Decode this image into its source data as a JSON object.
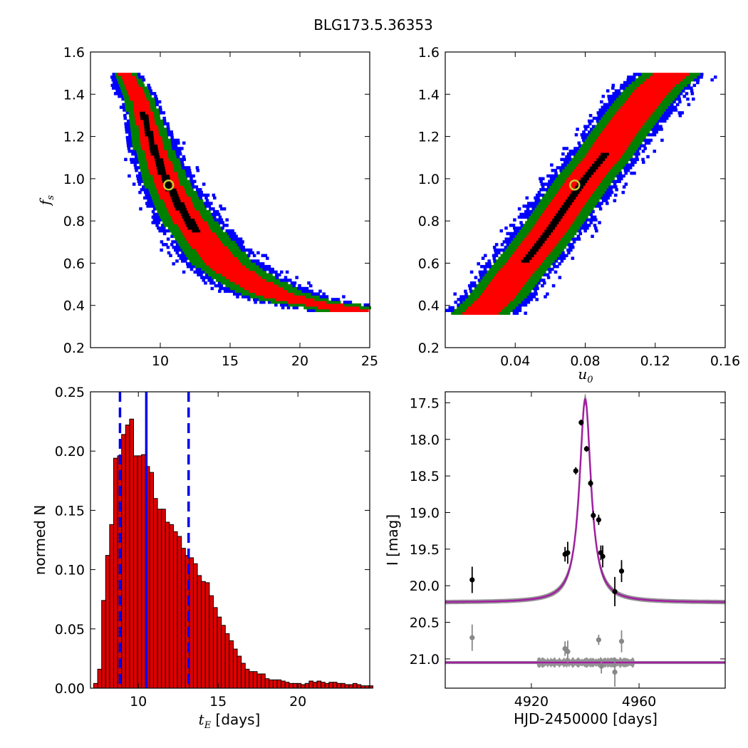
{
  "figure": {
    "title": "BLG173.5.36353"
  },
  "chart_data": [
    {
      "type": "heatmap",
      "panel": "fs-vs-tE",
      "xlim": [
        5,
        25
      ],
      "ylim": [
        0.2,
        1.6
      ],
      "xticks": [
        "10",
        "15",
        "20",
        "25"
      ],
      "yticks": [
        "0.2",
        "0.4",
        "0.6",
        "0.8",
        "1.0",
        "1.2",
        "1.4",
        "1.6"
      ],
      "ylabel": "f_s",
      "ylabel_main": "f",
      "ylabel_sub": "s",
      "best_fit": {
        "x": 10.6,
        "y": 0.97
      },
      "contour_levels": [
        "black",
        "red",
        "green",
        "blue"
      ],
      "colors": {
        "c1": "#000000",
        "c2": "#ff0000",
        "c3": "#008000",
        "c4": "#0000ff",
        "marker": "#c8c832"
      },
      "ridge": [
        [
          7.5,
          1.5
        ],
        [
          8.5,
          1.38
        ],
        [
          9.5,
          1.15
        ],
        [
          10.5,
          0.98
        ],
        [
          11.5,
          0.86
        ],
        [
          12.5,
          0.76
        ],
        [
          13.5,
          0.68
        ],
        [
          14.5,
          0.6
        ],
        [
          16,
          0.53
        ],
        [
          18,
          0.46
        ],
        [
          20,
          0.42
        ],
        [
          22,
          0.4
        ],
        [
          24,
          0.37
        ]
      ]
    },
    {
      "type": "heatmap",
      "panel": "fs-vs-u0",
      "xlim": [
        0.0,
        0.16
      ],
      "ylim": [
        0.2,
        1.6
      ],
      "xticks": [
        "0.04",
        "0.08",
        "0.12",
        "0.16"
      ],
      "yticks": [
        "0.2",
        "0.4",
        "0.6",
        "0.8",
        "1.0",
        "1.2",
        "1.4",
        "1.6"
      ],
      "xlabel": "u_0",
      "xlabel_main": "u",
      "xlabel_sub": "0",
      "best_fit": {
        "x": 0.074,
        "y": 0.97
      },
      "contour_levels": [
        "black",
        "red",
        "green",
        "blue"
      ],
      "colors": {
        "c1": "#000000",
        "c2": "#ff0000",
        "c3": "#008000",
        "c4": "#0000ff",
        "marker": "#c8c832"
      },
      "ridge": [
        [
          0.02,
          0.36
        ],
        [
          0.03,
          0.44
        ],
        [
          0.04,
          0.55
        ],
        [
          0.05,
          0.65
        ],
        [
          0.06,
          0.76
        ],
        [
          0.07,
          0.88
        ],
        [
          0.08,
          1.0
        ],
        [
          0.09,
          1.1
        ],
        [
          0.1,
          1.22
        ],
        [
          0.11,
          1.33
        ],
        [
          0.12,
          1.43
        ],
        [
          0.13,
          1.5
        ]
      ]
    },
    {
      "type": "bar",
      "panel": "tE-histogram",
      "xlabel_main": "t",
      "xlabel_sub": "E",
      "xlabel_unit": " [days]",
      "ylabel": "normed N",
      "xlim": [
        7.0,
        24.5
      ],
      "ylim": [
        0.0,
        0.25
      ],
      "xticks": [
        "10",
        "15",
        "20"
      ],
      "yticks": [
        "0.00",
        "0.05",
        "0.10",
        "0.15",
        "0.20",
        "0.25"
      ],
      "bin_start": 7.2,
      "bin_width": 0.25,
      "values": [
        0.004,
        0.016,
        0.074,
        0.112,
        0.138,
        0.194,
        0.196,
        0.214,
        0.222,
        0.227,
        0.196,
        0.196,
        0.197,
        0.187,
        0.182,
        0.16,
        0.151,
        0.151,
        0.14,
        0.138,
        0.132,
        0.128,
        0.118,
        0.112,
        0.11,
        0.105,
        0.095,
        0.09,
        0.089,
        0.078,
        0.068,
        0.06,
        0.053,
        0.046,
        0.04,
        0.033,
        0.027,
        0.021,
        0.016,
        0.014,
        0.014,
        0.012,
        0.012,
        0.008,
        0.007,
        0.007,
        0.007,
        0.006,
        0.005,
        0.004,
        0.004,
        0.004,
        0.003,
        0.004,
        0.006,
        0.005,
        0.006,
        0.005,
        0.004,
        0.005,
        0.005,
        0.004,
        0.004,
        0.003,
        0.003,
        0.004,
        0.003,
        0.002,
        0.002,
        0.002
      ],
      "bar_color": "#dd0000",
      "median": 10.5,
      "interval": [
        8.85,
        13.15
      ],
      "line_color": "#0000ee"
    },
    {
      "type": "line",
      "panel": "light-curve",
      "xlabel": "HJD-2450000 [days]",
      "ylabel": "I [mag]",
      "xlim": [
        4888,
        4992
      ],
      "ylim": [
        21.4,
        17.35
      ],
      "xticks": [
        "4920",
        "4960"
      ],
      "yticks": [
        "17.5",
        "18.0",
        "18.5",
        "19.0",
        "19.5",
        "20.0",
        "20.5",
        "21.0"
      ],
      "model": {
        "t0": 4940.0,
        "base": 20.23,
        "peak": 17.45,
        "width": 2.6
      },
      "residual_base": 21.05,
      "model_color": "#a020a0",
      "band_color": "#888888",
      "points": [
        {
          "x": 4898.0,
          "y": 19.92,
          "err": 0.18
        },
        {
          "x": 4932.5,
          "y": 19.57,
          "err": 0.1
        },
        {
          "x": 4933.5,
          "y": 19.55,
          "err": 0.15
        },
        {
          "x": 4936.5,
          "y": 18.43,
          "err": 0.05
        },
        {
          "x": 4938.5,
          "y": 17.77,
          "err": 0.04
        },
        {
          "x": 4940.5,
          "y": 18.13,
          "err": 0.04
        },
        {
          "x": 4942.0,
          "y": 18.6,
          "err": 0.05
        },
        {
          "x": 4943.0,
          "y": 19.04,
          "err": 0.06
        },
        {
          "x": 4945.0,
          "y": 19.1,
          "err": 0.07
        },
        {
          "x": 4945.8,
          "y": 19.55,
          "err": 0.1
        },
        {
          "x": 4946.5,
          "y": 19.6,
          "err": 0.15
        },
        {
          "x": 4951.0,
          "y": 20.08,
          "err": 0.2
        },
        {
          "x": 4953.5,
          "y": 19.8,
          "err": 0.15
        }
      ],
      "residual_points": [
        {
          "x": 4898.0,
          "y": 20.71,
          "err": 0.18
        },
        {
          "x": 4932.5,
          "y": 20.86,
          "err": 0.1
        },
        {
          "x": 4933.5,
          "y": 20.9,
          "err": 0.15
        },
        {
          "x": 4945.0,
          "y": 20.74,
          "err": 0.07
        },
        {
          "x": 4946.0,
          "y": 21.1,
          "err": 0.1
        },
        {
          "x": 4951.0,
          "y": 21.18,
          "err": 0.2
        },
        {
          "x": 4953.5,
          "y": 20.76,
          "err": 0.15
        }
      ]
    }
  ]
}
